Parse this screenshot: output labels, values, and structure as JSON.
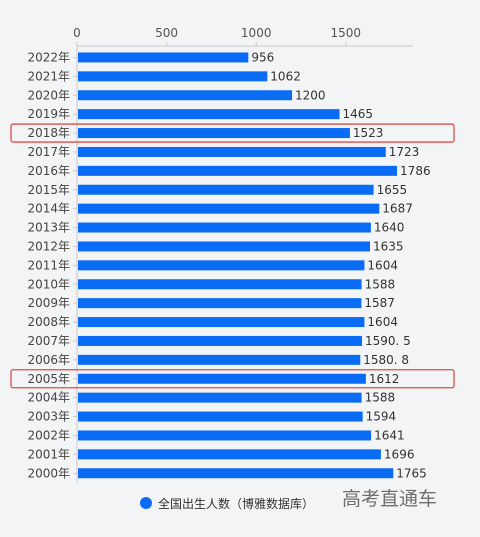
{
  "chart_data": {
    "type": "bar",
    "orientation": "horizontal",
    "categories": [
      "2022年",
      "2021年",
      "2020年",
      "2019年",
      "2018年",
      "2017年",
      "2016年",
      "2015年",
      "2014年",
      "2013年",
      "2012年",
      "2011年",
      "2010年",
      "2009年",
      "2008年",
      "2007年",
      "2006年",
      "2005年",
      "2004年",
      "2003年",
      "2002年",
      "2001年",
      "2000年"
    ],
    "values": [
      956,
      1062,
      1200,
      1465,
      1523,
      1723,
      1786,
      1655,
      1687,
      1640,
      1635,
      1604,
      1588,
      1587,
      1604,
      1590.5,
      1580.8,
      1612,
      1588,
      1594,
      1641,
      1696,
      1765
    ],
    "value_labels": [
      "956",
      "1062",
      "1200",
      "1465",
      "1523",
      "1723",
      "1786",
      "1655",
      "1687",
      "1640",
      "1635",
      "1604",
      "1588",
      "1587",
      "1604",
      "1590. 5",
      "1580. 8",
      "1612",
      "1588",
      "1594",
      "1641",
      "1696",
      "1765"
    ],
    "xlim": [
      0,
      1875
    ],
    "x_ticks": [
      0,
      500,
      1000,
      1500
    ],
    "x_tick_labels": [
      "0",
      "500",
      "1000",
      "1500"
    ],
    "xaxis_position": "top",
    "grid": false,
    "bar_color": "#0a6cf5",
    "highlighted_categories": [
      "2018年",
      "2005年"
    ],
    "highlight_color": "#e24a4a",
    "legend": {
      "label": "全国出生人数（博雅数据库）",
      "position": "bottom",
      "color": "#0a6cf5"
    },
    "title": "",
    "xlabel": "",
    "ylabel": ""
  },
  "watermark": "高考直通车"
}
